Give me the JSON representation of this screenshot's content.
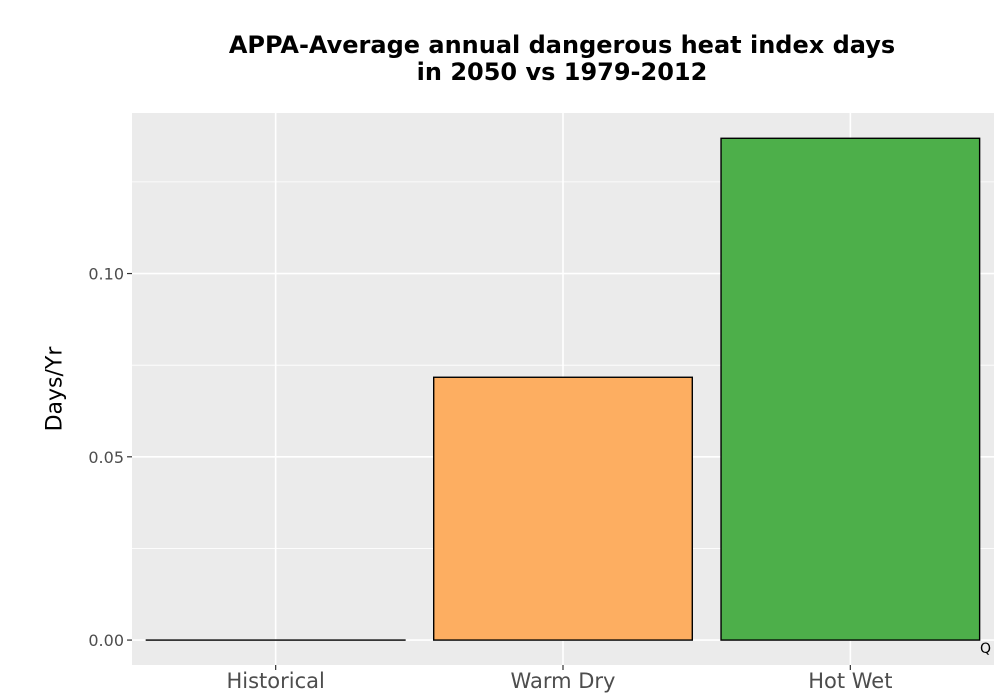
{
  "chart_data": {
    "type": "bar",
    "title_lines": [
      "APPA-Average annual dangerous heat index days",
      "in 2050 vs 1979-2012"
    ],
    "xlabel": "",
    "ylabel": "Days/Yr",
    "categories": [
      "Historical",
      "Warm Dry",
      "Hot Wet"
    ],
    "values": [
      0.0,
      0.0717,
      0.1369
    ],
    "colors": [
      "#4daf4a",
      "#fdae61",
      "#4daf4a"
    ],
    "yticks": [
      0.0,
      0.05,
      0.1
    ],
    "ytick_labels": [
      "0.00",
      "0.05",
      "0.10"
    ],
    "ylim": [
      -0.0068,
      0.1438
    ],
    "grid": true,
    "panel_background": "#ebebeb",
    "annotation": "Q"
  }
}
